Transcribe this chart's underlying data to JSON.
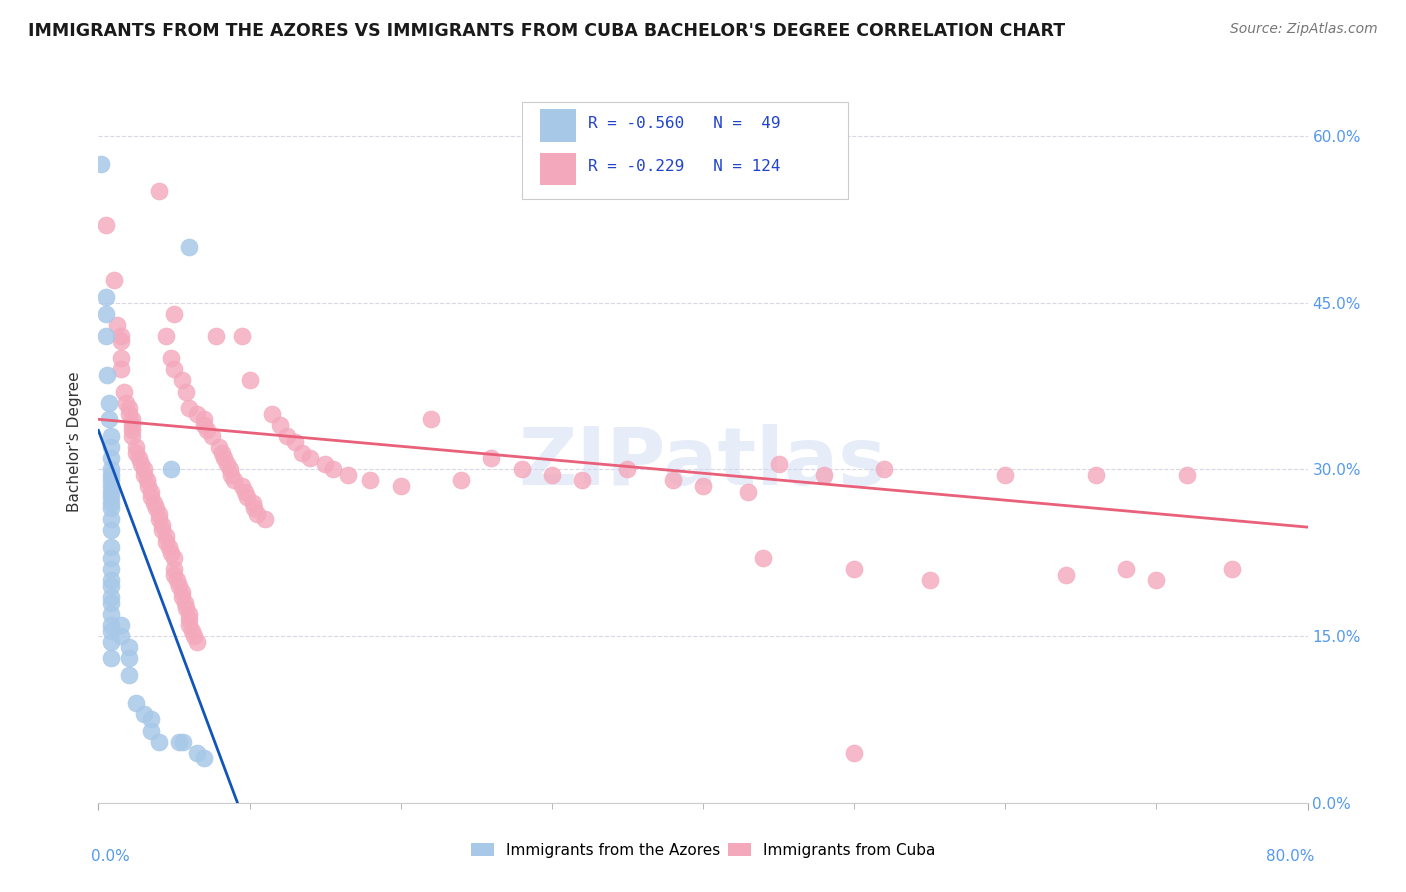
{
  "title": "IMMIGRANTS FROM THE AZORES VS IMMIGRANTS FROM CUBA BACHELOR'S DEGREE CORRELATION CHART",
  "source": "Source: ZipAtlas.com",
  "ylabel": "Bachelor's Degree",
  "xlim": [
    0.0,
    0.8
  ],
  "ylim": [
    0.0,
    0.65
  ],
  "ytick_vals": [
    0.0,
    0.15,
    0.3,
    0.45,
    0.6
  ],
  "right_ytick_labels": [
    "0.0%",
    "15.0%",
    "30.0%",
    "45.0%",
    "60.0%"
  ],
  "xtick_vals": [
    0.0,
    0.1,
    0.2,
    0.3,
    0.4,
    0.5,
    0.6,
    0.7,
    0.8
  ],
  "watermark": "ZIPatlas",
  "azores_color": "#a8c8e8",
  "cuba_color": "#f4a8bc",
  "azores_line_color": "#1155bb",
  "cuba_line_color": "#e8607a",
  "azores_scatter": [
    [
      0.002,
      0.575
    ],
    [
      0.005,
      0.455
    ],
    [
      0.005,
      0.44
    ],
    [
      0.005,
      0.42
    ],
    [
      0.006,
      0.385
    ],
    [
      0.007,
      0.36
    ],
    [
      0.007,
      0.345
    ],
    [
      0.008,
      0.33
    ],
    [
      0.008,
      0.32
    ],
    [
      0.008,
      0.31
    ],
    [
      0.008,
      0.3
    ],
    [
      0.008,
      0.295
    ],
    [
      0.008,
      0.29
    ],
    [
      0.008,
      0.285
    ],
    [
      0.008,
      0.28
    ],
    [
      0.008,
      0.275
    ],
    [
      0.008,
      0.27
    ],
    [
      0.008,
      0.265
    ],
    [
      0.008,
      0.255
    ],
    [
      0.008,
      0.245
    ],
    [
      0.008,
      0.23
    ],
    [
      0.008,
      0.22
    ],
    [
      0.008,
      0.21
    ],
    [
      0.008,
      0.2
    ],
    [
      0.008,
      0.195
    ],
    [
      0.008,
      0.185
    ],
    [
      0.008,
      0.18
    ],
    [
      0.008,
      0.17
    ],
    [
      0.008,
      0.16
    ],
    [
      0.008,
      0.155
    ],
    [
      0.008,
      0.145
    ],
    [
      0.008,
      0.13
    ],
    [
      0.015,
      0.16
    ],
    [
      0.015,
      0.15
    ],
    [
      0.02,
      0.14
    ],
    [
      0.02,
      0.13
    ],
    [
      0.02,
      0.115
    ],
    [
      0.025,
      0.09
    ],
    [
      0.03,
      0.08
    ],
    [
      0.035,
      0.075
    ],
    [
      0.035,
      0.065
    ],
    [
      0.04,
      0.055
    ],
    [
      0.048,
      0.3
    ],
    [
      0.053,
      0.055
    ],
    [
      0.056,
      0.055
    ],
    [
      0.06,
      0.5
    ],
    [
      0.065,
      0.045
    ],
    [
      0.07,
      0.04
    ]
  ],
  "cuba_scatter": [
    [
      0.005,
      0.52
    ],
    [
      0.01,
      0.47
    ],
    [
      0.012,
      0.43
    ],
    [
      0.015,
      0.42
    ],
    [
      0.015,
      0.415
    ],
    [
      0.015,
      0.4
    ],
    [
      0.015,
      0.39
    ],
    [
      0.017,
      0.37
    ],
    [
      0.018,
      0.36
    ],
    [
      0.02,
      0.355
    ],
    [
      0.02,
      0.35
    ],
    [
      0.022,
      0.345
    ],
    [
      0.022,
      0.34
    ],
    [
      0.022,
      0.335
    ],
    [
      0.022,
      0.33
    ],
    [
      0.025,
      0.32
    ],
    [
      0.025,
      0.315
    ],
    [
      0.027,
      0.31
    ],
    [
      0.028,
      0.305
    ],
    [
      0.03,
      0.3
    ],
    [
      0.03,
      0.295
    ],
    [
      0.032,
      0.29
    ],
    [
      0.033,
      0.285
    ],
    [
      0.035,
      0.28
    ],
    [
      0.035,
      0.275
    ],
    [
      0.037,
      0.27
    ],
    [
      0.038,
      0.265
    ],
    [
      0.04,
      0.26
    ],
    [
      0.04,
      0.255
    ],
    [
      0.042,
      0.25
    ],
    [
      0.042,
      0.245
    ],
    [
      0.045,
      0.24
    ],
    [
      0.045,
      0.235
    ],
    [
      0.047,
      0.23
    ],
    [
      0.048,
      0.225
    ],
    [
      0.05,
      0.22
    ],
    [
      0.05,
      0.44
    ],
    [
      0.05,
      0.21
    ],
    [
      0.05,
      0.205
    ],
    [
      0.052,
      0.2
    ],
    [
      0.053,
      0.195
    ],
    [
      0.055,
      0.19
    ],
    [
      0.055,
      0.185
    ],
    [
      0.057,
      0.18
    ],
    [
      0.058,
      0.175
    ],
    [
      0.06,
      0.17
    ],
    [
      0.06,
      0.165
    ],
    [
      0.06,
      0.16
    ],
    [
      0.062,
      0.155
    ],
    [
      0.063,
      0.15
    ],
    [
      0.065,
      0.145
    ],
    [
      0.04,
      0.55
    ],
    [
      0.045,
      0.42
    ],
    [
      0.048,
      0.4
    ],
    [
      0.05,
      0.39
    ],
    [
      0.055,
      0.38
    ],
    [
      0.058,
      0.37
    ],
    [
      0.06,
      0.355
    ],
    [
      0.065,
      0.35
    ],
    [
      0.07,
      0.345
    ],
    [
      0.07,
      0.34
    ],
    [
      0.072,
      0.335
    ],
    [
      0.075,
      0.33
    ],
    [
      0.078,
      0.42
    ],
    [
      0.08,
      0.32
    ],
    [
      0.082,
      0.315
    ],
    [
      0.083,
      0.31
    ],
    [
      0.085,
      0.305
    ],
    [
      0.087,
      0.3
    ],
    [
      0.088,
      0.295
    ],
    [
      0.09,
      0.29
    ],
    [
      0.095,
      0.42
    ],
    [
      0.095,
      0.285
    ],
    [
      0.097,
      0.28
    ],
    [
      0.098,
      0.275
    ],
    [
      0.1,
      0.38
    ],
    [
      0.102,
      0.27
    ],
    [
      0.103,
      0.265
    ],
    [
      0.105,
      0.26
    ],
    [
      0.11,
      0.255
    ],
    [
      0.115,
      0.35
    ],
    [
      0.12,
      0.34
    ],
    [
      0.125,
      0.33
    ],
    [
      0.13,
      0.325
    ],
    [
      0.135,
      0.315
    ],
    [
      0.14,
      0.31
    ],
    [
      0.15,
      0.305
    ],
    [
      0.155,
      0.3
    ],
    [
      0.165,
      0.295
    ],
    [
      0.18,
      0.29
    ],
    [
      0.2,
      0.285
    ],
    [
      0.22,
      0.345
    ],
    [
      0.24,
      0.29
    ],
    [
      0.26,
      0.31
    ],
    [
      0.28,
      0.3
    ],
    [
      0.3,
      0.295
    ],
    [
      0.32,
      0.29
    ],
    [
      0.35,
      0.3
    ],
    [
      0.38,
      0.29
    ],
    [
      0.4,
      0.285
    ],
    [
      0.43,
      0.28
    ],
    [
      0.44,
      0.22
    ],
    [
      0.45,
      0.305
    ],
    [
      0.48,
      0.295
    ],
    [
      0.5,
      0.21
    ],
    [
      0.52,
      0.3
    ],
    [
      0.55,
      0.2
    ],
    [
      0.6,
      0.295
    ],
    [
      0.64,
      0.205
    ],
    [
      0.66,
      0.295
    ],
    [
      0.68,
      0.21
    ],
    [
      0.7,
      0.2
    ],
    [
      0.72,
      0.295
    ],
    [
      0.75,
      0.21
    ],
    [
      0.5,
      0.045
    ]
  ],
  "azores_trend_x": [
    0.0,
    0.092
  ],
  "azores_trend_y": [
    0.335,
    0.0
  ],
  "cuba_trend_x": [
    0.0,
    0.8
  ],
  "cuba_trend_y": [
    0.345,
    0.248
  ],
  "background_color": "#ffffff",
  "grid_color": "#d8d8e8",
  "title_fontsize": 12.5,
  "source_fontsize": 10
}
